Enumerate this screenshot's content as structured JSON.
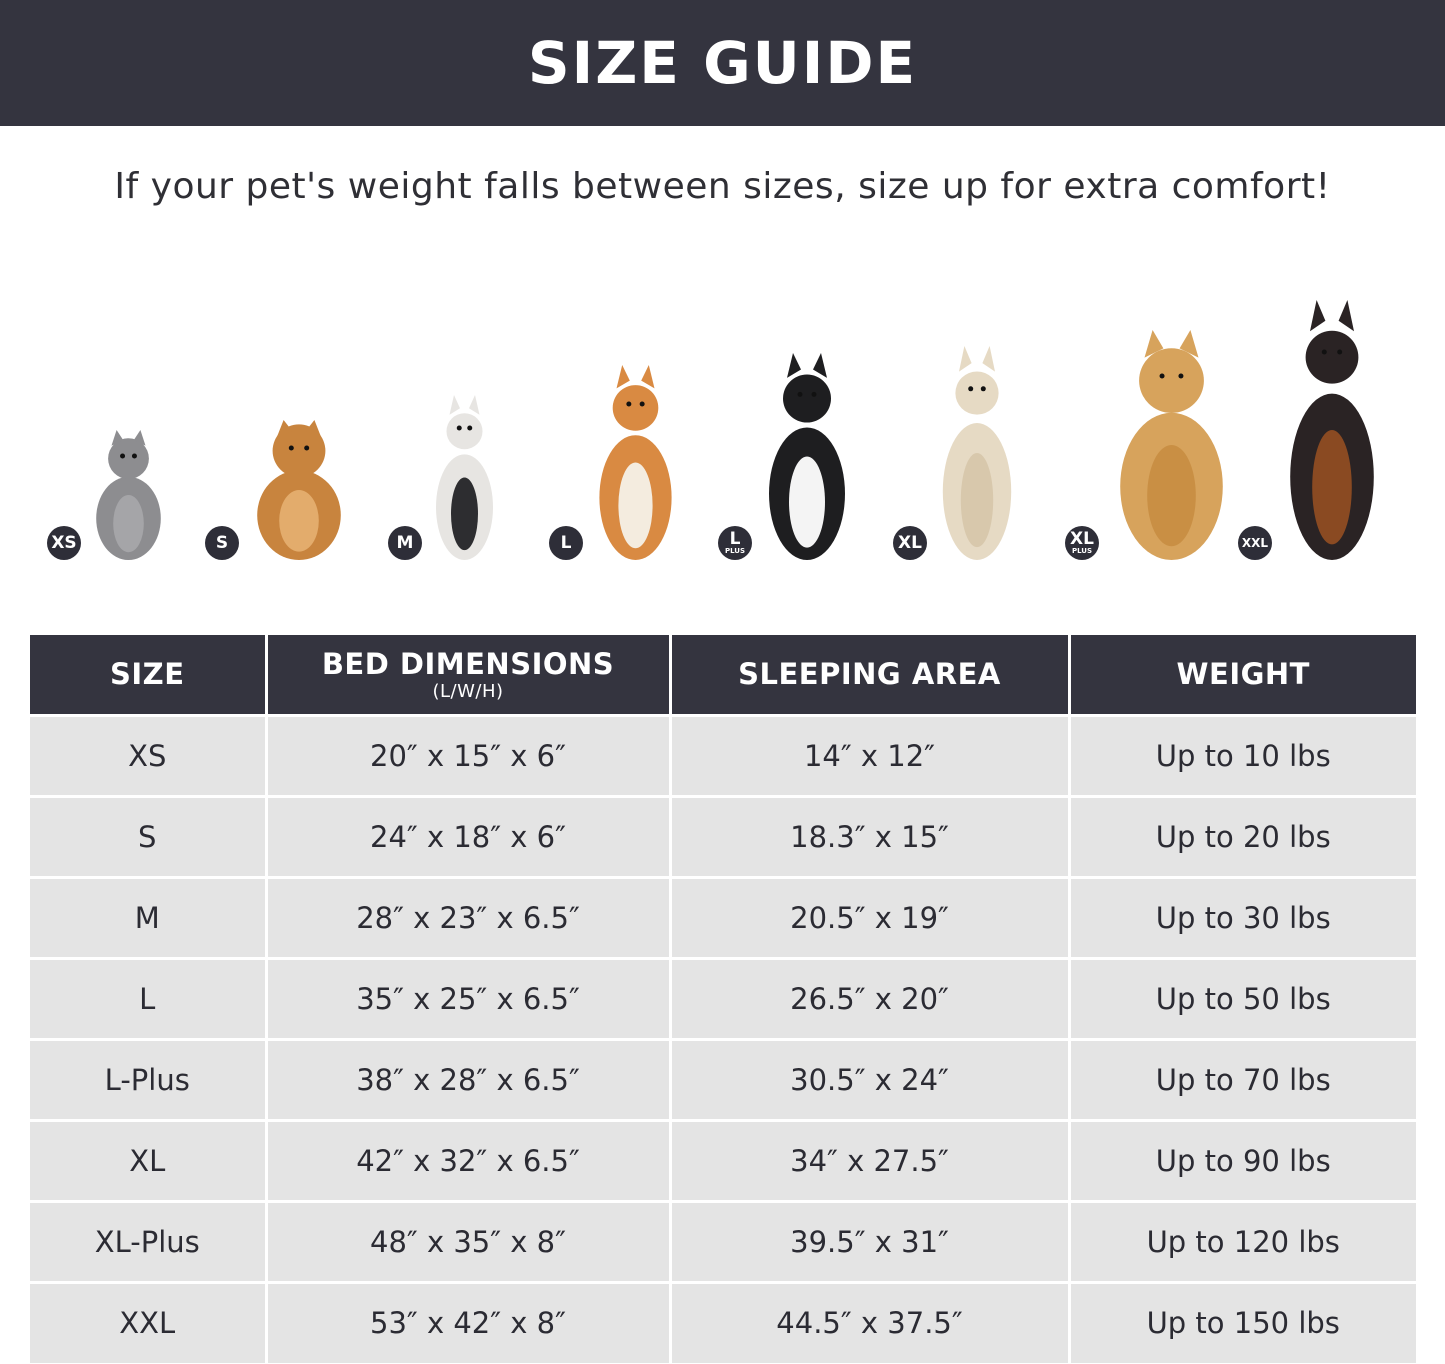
{
  "title": "SIZE GUIDE",
  "subtitle": "If your pet's weight falls between sizes, size up for extra comfort!",
  "colors": {
    "header_bg": "#34343f",
    "row_bg": "#e4e4e4",
    "badge_bg": "#2e2e38"
  },
  "pets": [
    {
      "badge": "XS",
      "badge_sub": "",
      "animal": "gray cat"
    },
    {
      "badge": "S",
      "badge_sub": "",
      "animal": "pomeranian"
    },
    {
      "badge": "M",
      "badge_sub": "",
      "animal": "french bulldog"
    },
    {
      "badge": "L",
      "badge_sub": "",
      "animal": "shiba inu"
    },
    {
      "badge": "L",
      "badge_sub": "PLUS",
      "animal": "border collie"
    },
    {
      "badge": "XL",
      "badge_sub": "",
      "animal": "labrador"
    },
    {
      "badge": "XL",
      "badge_sub": "PLUS",
      "animal": "golden retriever"
    },
    {
      "badge": "XXL",
      "badge_sub": "",
      "animal": "doberman"
    }
  ],
  "table": {
    "headers": [
      {
        "label": "SIZE",
        "sub": ""
      },
      {
        "label": "BED DIMENSIONS",
        "sub": "(L/W/H)"
      },
      {
        "label": "SLEEPING AREA",
        "sub": ""
      },
      {
        "label": "WEIGHT",
        "sub": ""
      }
    ],
    "rows": [
      [
        "XS",
        "20″ x 15″ x 6″",
        "14″ x 12″",
        "Up to 10 lbs"
      ],
      [
        "S",
        "24″ x 18″ x 6″",
        "18.3″ x 15″",
        "Up to 20 lbs"
      ],
      [
        "M",
        "28″ x 23″ x 6.5″",
        "20.5″ x 19″",
        "Up to 30 lbs"
      ],
      [
        "L",
        "35″ x 25″ x 6.5″",
        "26.5″ x 20″",
        "Up to 50 lbs"
      ],
      [
        "L-Plus",
        "38″ x 28″ x 6.5″",
        "30.5″ x 24″",
        "Up to 70 lbs"
      ],
      [
        "XL",
        "42″ x 32″ x 6.5″",
        "34″ x 27.5″",
        "Up to 90 lbs"
      ],
      [
        "XL-Plus",
        "48″ x 35″ x 8″",
        "39.5″ x 31″",
        "Up to 120 lbs"
      ],
      [
        "XXL",
        "53″ x 42″ x 8″",
        "44.5″ x 37.5″",
        "Up to 150 lbs"
      ]
    ]
  }
}
